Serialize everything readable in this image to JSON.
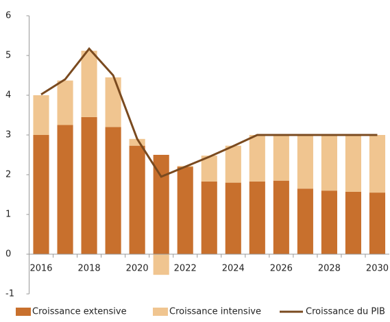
{
  "chart_data": {
    "type": "stacked-bar-line",
    "categories": [
      "2016",
      null,
      "2018",
      null,
      "2020",
      null,
      "2022",
      null,
      "2024",
      null,
      "2026",
      null,
      "2028",
      null,
      "2030"
    ],
    "series": [
      {
        "name": "Croissance extensive",
        "type": "bar",
        "color": "#c8702d",
        "values": [
          3.0,
          3.25,
          3.45,
          3.2,
          2.73,
          2.5,
          2.2,
          1.83,
          1.8,
          1.83,
          1.85,
          1.65,
          1.6,
          1.57,
          1.55
        ]
      },
      {
        "name": "Croissance intensive",
        "type": "bar",
        "color": "#f0c590",
        "values": [
          1.0,
          1.12,
          1.67,
          1.25,
          0.17,
          -0.52,
          0.02,
          0.65,
          0.93,
          1.17,
          1.15,
          1.35,
          1.4,
          1.43,
          1.45
        ]
      },
      {
        "name": "Croissance du PIB",
        "type": "line",
        "color": "#7a4a1f",
        "values": [
          4.02,
          4.4,
          5.17,
          4.5,
          2.9,
          1.95,
          2.2,
          2.45,
          2.72,
          3.0,
          3.0,
          3.0,
          3.0,
          3.0,
          3.0
        ]
      }
    ],
    "ylim": [
      -1,
      6
    ],
    "yticks": [
      -1,
      0,
      1,
      2,
      3,
      4,
      5,
      6
    ],
    "legend": "bottom"
  }
}
